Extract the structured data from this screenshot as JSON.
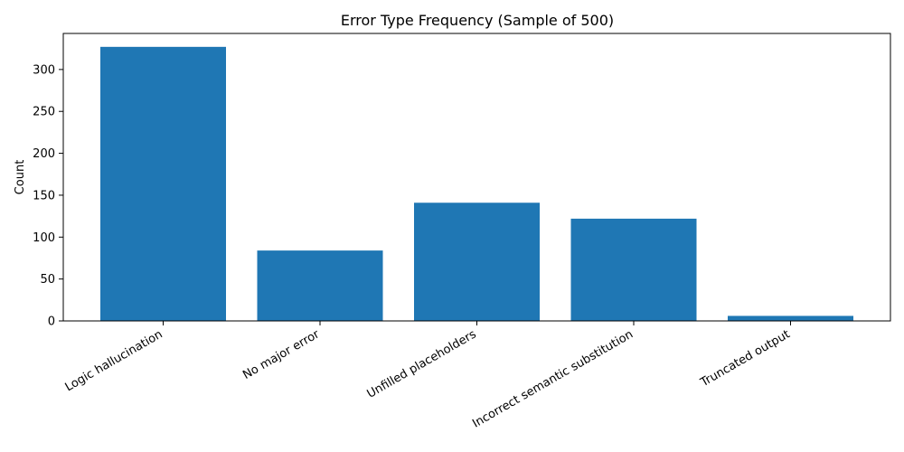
{
  "chart_data": {
    "type": "bar",
    "title": "Error Type Frequency (Sample of 500)",
    "xlabel": "",
    "ylabel": "Count",
    "categories": [
      "Logic hallucination",
      "No major error",
      "Unfilled placeholders",
      "Incorrect semantic substitution",
      "Truncated output"
    ],
    "values": [
      327,
      84,
      141,
      122,
      6
    ],
    "ylim": [
      0,
      343
    ],
    "yticks": [
      0,
      50,
      100,
      150,
      200,
      250,
      300
    ],
    "bar_color": "#1f77b4",
    "grid": false,
    "legend": "none"
  }
}
